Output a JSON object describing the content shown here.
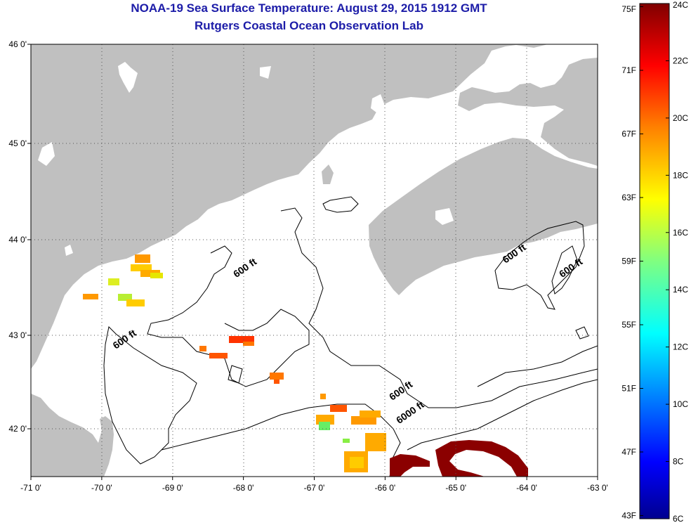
{
  "title": {
    "line1": "NOAA-19 Sea Surface Temperature:  August 29, 2015 1912 GMT",
    "line2": "Rutgers Coastal Ocean Observation Lab"
  },
  "map": {
    "lon_range": [
      -71,
      -63
    ],
    "lat_range": [
      41.5,
      46
    ],
    "lon_ticks": [
      {
        "value": -71,
        "label": "-71 0'"
      },
      {
        "value": -70,
        "label": "-70 0'"
      },
      {
        "value": -69,
        "label": "-69 0'"
      },
      {
        "value": -68,
        "label": "-68 0'"
      },
      {
        "value": -67,
        "label": "-67 0'"
      },
      {
        "value": -66,
        "label": "-66 0'"
      },
      {
        "value": -65,
        "label": "-65 0'"
      },
      {
        "value": -64,
        "label": "-64 0'"
      },
      {
        "value": -63,
        "label": "-63 0'"
      }
    ],
    "lat_ticks": [
      {
        "value": 46,
        "label": "46 0'"
      },
      {
        "value": 45,
        "label": "45 0'"
      },
      {
        "value": 44,
        "label": "44 0'"
      },
      {
        "value": 43,
        "label": "43 0'"
      },
      {
        "value": 42,
        "label": "42 0'"
      }
    ],
    "grid": "dotted",
    "land_color": "#c0c0c0",
    "contour_labels": [
      {
        "text": "600 ft",
        "lon": -68.1,
        "lat": 43.6
      },
      {
        "text": "600 ft",
        "lon": -69.8,
        "lat": 42.85
      },
      {
        "text": "600 ft",
        "lon": -64.3,
        "lat": 43.75
      },
      {
        "text": "600 ft",
        "lon": -63.5,
        "lat": 43.6
      },
      {
        "text": "600 ft",
        "lon": -65.9,
        "lat": 42.3
      },
      {
        "text": "6000 ft",
        "lon": -65.8,
        "lat": 42.05
      }
    ]
  },
  "colorbar": {
    "f_labels": [
      {
        "value": 75,
        "label": "75F"
      },
      {
        "value": 71,
        "label": "71F"
      },
      {
        "value": 67,
        "label": "67F"
      },
      {
        "value": 63,
        "label": "63F"
      },
      {
        "value": 59,
        "label": "59F"
      },
      {
        "value": 55,
        "label": "55F"
      },
      {
        "value": 51,
        "label": "51F"
      },
      {
        "value": 47,
        "label": "47F"
      },
      {
        "value": 43,
        "label": "43F"
      }
    ],
    "c_labels": [
      {
        "value": 24,
        "label": "24C"
      },
      {
        "value": 22,
        "label": "22C"
      },
      {
        "value": 20,
        "label": "20C"
      },
      {
        "value": 18,
        "label": "18C"
      },
      {
        "value": 16,
        "label": "16C"
      },
      {
        "value": 14,
        "label": "14C"
      },
      {
        "value": 12,
        "label": "12C"
      },
      {
        "value": 10,
        "label": "10C"
      },
      {
        "value": 8,
        "label": "8C"
      },
      {
        "value": 6,
        "label": "6C"
      }
    ],
    "range_c": [
      6,
      24
    ],
    "colors": [
      "#00008f",
      "#0000ff",
      "#0080ff",
      "#00ffff",
      "#80ff80",
      "#ffff00",
      "#ff8000",
      "#ff0000",
      "#800000"
    ]
  }
}
